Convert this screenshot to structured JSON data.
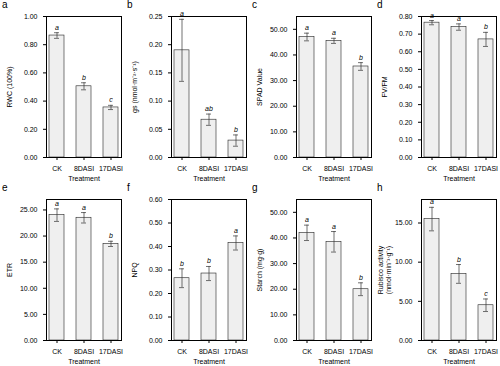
{
  "chart_data": [
    {
      "type": "bar",
      "title": "a",
      "ylabel": "RWC (100%)",
      "xlabel": "Treatment",
      "categories": [
        "CK",
        "8DASI",
        "17DASI"
      ],
      "values": [
        0.865,
        0.505,
        0.355
      ],
      "errors": [
        0.02,
        0.025,
        0.015
      ],
      "annotations": [
        "a",
        "b",
        "c"
      ],
      "color": "#efefef",
      "ylim": [
        0.0,
        1.0
      ],
      "yticks": [
        {
          "value": 0.0,
          "label": "0.00"
        },
        {
          "value": 0.2,
          "label": "0.20"
        },
        {
          "value": 0.4,
          "label": "0.40"
        },
        {
          "value": 0.6,
          "label": "0.60"
        },
        {
          "value": 0.8,
          "label": "0.80"
        },
        {
          "value": 1.0,
          "label": "1.00"
        }
      ]
    },
    {
      "type": "bar",
      "title": "b",
      "ylabel": "gs (nmol·m⁻²·s⁻¹)",
      "xlabel": "Treatment",
      "categories": [
        "CK",
        "8DASI",
        "17DASI"
      ],
      "values": [
        0.19,
        0.067,
        0.03
      ],
      "errors": [
        0.055,
        0.01,
        0.01
      ],
      "annotations": [
        "a",
        "ab",
        "b"
      ],
      "color": "#efefef",
      "ylim": [
        0.0,
        0.25
      ],
      "yticks": [
        {
          "value": 0.0,
          "label": "0.00"
        },
        {
          "value": 0.05,
          "label": "0.05"
        },
        {
          "value": 0.1,
          "label": "0.10"
        },
        {
          "value": 0.15,
          "label": "0.15"
        },
        {
          "value": 0.2,
          "label": "0.20"
        },
        {
          "value": 0.25,
          "label": "0.25"
        }
      ]
    },
    {
      "type": "bar",
      "title": "c",
      "ylabel": "SPAD Value",
      "xlabel": "Treatment",
      "categories": [
        "CK",
        "8DASI",
        "17DASI"
      ],
      "values": [
        47.0,
        45.5,
        35.5
      ],
      "errors": [
        1.5,
        1.0,
        1.5
      ],
      "annotations": [
        "a",
        "a",
        "b"
      ],
      "color": "#efefef",
      "ylim": [
        0.0,
        55.0
      ],
      "yticks": [
        {
          "value": 0.0,
          "label": "0.00"
        },
        {
          "value": 10.0,
          "label": "10.00"
        },
        {
          "value": 20.0,
          "label": "20.00"
        },
        {
          "value": 30.0,
          "label": "30.00"
        },
        {
          "value": 40.0,
          "label": "40.00"
        },
        {
          "value": 50.0,
          "label": "50.00"
        }
      ]
    },
    {
      "type": "bar",
      "title": "d",
      "ylabel": "FV/FM",
      "xlabel": "Treatment",
      "categories": [
        "CK",
        "8DASI",
        "17DASI"
      ],
      "values": [
        0.765,
        0.74,
        0.67
      ],
      "errors": [
        0.012,
        0.018,
        0.04
      ],
      "annotations": [
        "a",
        "a",
        "b"
      ],
      "color": "#efefef",
      "ylim": [
        0.0,
        0.8
      ],
      "yticks": [
        {
          "value": 0.0,
          "label": "0.00"
        },
        {
          "value": 0.1,
          "label": "0.10"
        },
        {
          "value": 0.2,
          "label": "0.20"
        },
        {
          "value": 0.3,
          "label": "0.30"
        },
        {
          "value": 0.4,
          "label": "0.40"
        },
        {
          "value": 0.5,
          "label": "0.50"
        },
        {
          "value": 0.6,
          "label": "0.60"
        },
        {
          "value": 0.7,
          "label": "0.70"
        },
        {
          "value": 0.8,
          "label": "0.80"
        }
      ]
    },
    {
      "type": "bar",
      "title": "e",
      "ylabel": "ETR",
      "xlabel": "Treatment",
      "categories": [
        "CK",
        "8DASI",
        "17DASI"
      ],
      "values": [
        24.0,
        23.5,
        18.5
      ],
      "errors": [
        1.2,
        1.0,
        0.5
      ],
      "annotations": [
        "a",
        "a",
        "b"
      ],
      "color": "#efefef",
      "ylim": [
        0.0,
        27.0
      ],
      "yticks": [
        {
          "value": 0.0,
          "label": "0.00"
        },
        {
          "value": 5.0,
          "label": "5.00"
        },
        {
          "value": 10.0,
          "label": "10.00"
        },
        {
          "value": 15.0,
          "label": "15.00"
        },
        {
          "value": 20.0,
          "label": "20.00"
        },
        {
          "value": 25.0,
          "label": "25.00"
        }
      ]
    },
    {
      "type": "bar",
      "title": "f",
      "ylabel": "NPQ",
      "xlabel": "Treatment",
      "categories": [
        "CK",
        "8DASI",
        "17DASI"
      ],
      "values": [
        0.265,
        0.285,
        0.415
      ],
      "errors": [
        0.04,
        0.03,
        0.03
      ],
      "annotations": [
        "b",
        "b",
        "a"
      ],
      "color": "#efefef",
      "ylim": [
        0.0,
        0.6
      ],
      "yticks": [
        {
          "value": 0.0,
          "label": "0.00"
        },
        {
          "value": 0.1,
          "label": "0.10"
        },
        {
          "value": 0.2,
          "label": "0.20"
        },
        {
          "value": 0.3,
          "label": "0.30"
        },
        {
          "value": 0.4,
          "label": "0.40"
        },
        {
          "value": 0.5,
          "label": "0.50"
        },
        {
          "value": 0.6,
          "label": "0.60"
        }
      ]
    },
    {
      "type": "bar",
      "title": "g",
      "ylabel": "Starch (mg·g)",
      "xlabel": "Treatment",
      "categories": [
        "CK",
        "8DASI",
        "17DASI"
      ],
      "values": [
        42.0,
        38.5,
        20.0
      ],
      "errors": [
        3.0,
        4.0,
        2.5
      ],
      "annotations": [
        "a",
        "a",
        "b"
      ],
      "color": "#efefef",
      "ylim": [
        0.0,
        55.0
      ],
      "yticks": [
        {
          "value": 0.0,
          "label": "0.00"
        },
        {
          "value": 10.0,
          "label": "10.00"
        },
        {
          "value": 20.0,
          "label": "20.00"
        },
        {
          "value": 30.0,
          "label": "30.00"
        },
        {
          "value": 40.0,
          "label": "40.00"
        },
        {
          "value": 50.0,
          "label": "50.00"
        }
      ]
    },
    {
      "type": "bar",
      "title": "h",
      "ylabel": "Rubisco activity\n(nmol·min⁻¹·g⁻¹)",
      "xlabel": "Treatment",
      "categories": [
        "CK",
        "8DASI",
        "17DASI"
      ],
      "values": [
        15.5,
        8.5,
        4.5
      ],
      "errors": [
        1.5,
        1.2,
        0.8
      ],
      "annotations": [
        "a",
        "b",
        "c"
      ],
      "color": "#efefef",
      "ylim": [
        0.0,
        18.0
      ],
      "yticks": [
        {
          "value": 0.0,
          "label": "0.00"
        },
        {
          "value": 5.0,
          "label": "5.00"
        },
        {
          "value": 10.0,
          "label": "10.00"
        },
        {
          "value": 15.0,
          "label": "15.00"
        }
      ]
    }
  ]
}
